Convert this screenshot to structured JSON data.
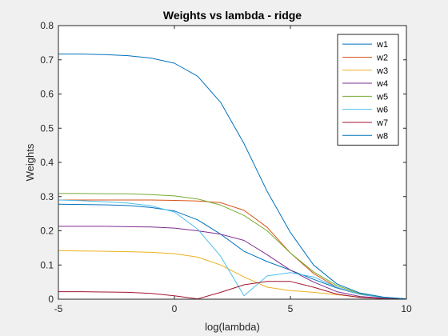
{
  "chart_data": {
    "type": "line",
    "title": "Weights vs lambda - ridge",
    "xlabel": "log(lambda)",
    "ylabel": "Weights",
    "xlim": [
      -5,
      10
    ],
    "ylim": [
      0,
      0.8
    ],
    "xticks": [
      -5,
      0,
      5,
      10
    ],
    "yticks": [
      0,
      0.1,
      0.2,
      0.3,
      0.4,
      0.5,
      0.6,
      0.7,
      0.8
    ],
    "xtick_labels": [
      "-5",
      "0",
      "5",
      "10"
    ],
    "ytick_labels": [
      "0",
      "0.1",
      "0.2",
      "0.3",
      "0.4",
      "0.5",
      "0.6",
      "0.7",
      "0.8"
    ],
    "grid": false,
    "legend_position": "top-right",
    "x": [
      -5,
      -4,
      -3,
      -2,
      -1,
      0,
      1,
      2,
      3,
      4,
      5,
      6,
      7,
      8,
      9,
      10
    ],
    "series": [
      {
        "name": "w1",
        "color": "#0072BD",
        "values": [
          0.278,
          0.277,
          0.276,
          0.274,
          0.268,
          0.258,
          0.232,
          0.19,
          0.14,
          0.11,
          0.085,
          0.058,
          0.033,
          0.014,
          0.005,
          0.001
        ]
      },
      {
        "name": "w2",
        "color": "#D95319",
        "values": [
          0.29,
          0.29,
          0.29,
          0.29,
          0.29,
          0.289,
          0.287,
          0.282,
          0.26,
          0.21,
          0.135,
          0.075,
          0.035,
          0.014,
          0.005,
          0.001
        ]
      },
      {
        "name": "w3",
        "color": "#EDB120",
        "values": [
          0.142,
          0.141,
          0.14,
          0.139,
          0.137,
          0.133,
          0.123,
          0.1,
          0.065,
          0.035,
          0.025,
          0.02,
          0.013,
          0.006,
          0.002,
          0.0
        ]
      },
      {
        "name": "w4",
        "color": "#7E2F8E",
        "values": [
          0.213,
          0.213,
          0.213,
          0.212,
          0.211,
          0.208,
          0.2,
          0.19,
          0.172,
          0.13,
          0.085,
          0.05,
          0.022,
          0.008,
          0.003,
          0.001
        ]
      },
      {
        "name": "w5",
        "color": "#77AC30",
        "values": [
          0.309,
          0.309,
          0.308,
          0.308,
          0.306,
          0.302,
          0.293,
          0.275,
          0.245,
          0.2,
          0.135,
          0.08,
          0.04,
          0.016,
          0.006,
          0.001
        ]
      },
      {
        "name": "w6",
        "color": "#4DBEEE",
        "values": [
          0.29,
          0.288,
          0.285,
          0.281,
          0.273,
          0.255,
          0.205,
          0.125,
          0.01,
          0.068,
          0.078,
          0.065,
          0.035,
          0.014,
          0.005,
          0.001
        ]
      },
      {
        "name": "w7",
        "color": "#A2142F",
        "values": [
          0.022,
          0.022,
          0.021,
          0.02,
          0.017,
          0.01,
          0.001,
          0.02,
          0.042,
          0.052,
          0.052,
          0.035,
          0.015,
          0.005,
          0.002,
          0.0
        ]
      },
      {
        "name": "w8",
        "color": "#0072BD",
        "values": [
          0.717,
          0.717,
          0.715,
          0.712,
          0.705,
          0.69,
          0.652,
          0.575,
          0.455,
          0.315,
          0.195,
          0.1,
          0.045,
          0.018,
          0.006,
          0.001
        ]
      }
    ]
  }
}
